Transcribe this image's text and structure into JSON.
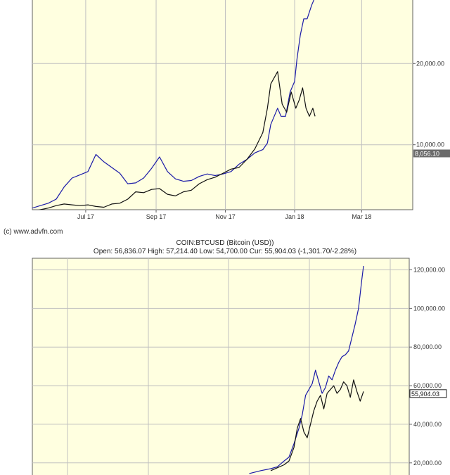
{
  "credit": "(c) www.advfn.com",
  "chart_data": [
    {
      "type": "line",
      "title": "",
      "xlabel": "",
      "ylabel": "",
      "x_ticks": [
        "Jul 17",
        "Sep 17",
        "Nov 17",
        "Jan 18",
        "Mar 18"
      ],
      "y_ticks": [
        "10,000.00",
        "20,000.00"
      ],
      "ylim": [
        2000,
        28000
      ],
      "last_value_label": "8,056.10",
      "grid": true,
      "series": [
        {
          "color": "#1a1aa8",
          "x": [
            "2017-05-15",
            "2017-05-22",
            "2017-05-29",
            "2017-06-05",
            "2017-06-12",
            "2017-06-19",
            "2017-06-26",
            "2017-07-03",
            "2017-07-10",
            "2017-07-17",
            "2017-07-24",
            "2017-07-31",
            "2017-08-07",
            "2017-08-14",
            "2017-08-21",
            "2017-08-28",
            "2017-09-04",
            "2017-09-11",
            "2017-09-18",
            "2017-09-25",
            "2017-10-02",
            "2017-10-09",
            "2017-10-16",
            "2017-10-23",
            "2017-10-30",
            "2017-11-06",
            "2017-11-13",
            "2017-11-20",
            "2017-11-27",
            "2017-12-04",
            "2017-12-08",
            "2017-12-11",
            "2017-12-17",
            "2017-12-20",
            "2017-12-24",
            "2017-12-28",
            "2018-01-01",
            "2018-01-03",
            "2018-01-06",
            "2018-01-09",
            "2018-01-12",
            "2018-01-16",
            "2018-01-20"
          ],
          "y": [
            2200,
            2500,
            2800,
            3300,
            4800,
            5900,
            6300,
            6700,
            8800,
            7900,
            7200,
            6500,
            5200,
            5300,
            5900,
            7100,
            8500,
            6700,
            5800,
            5500,
            5600,
            6100,
            6400,
            6200,
            6400,
            6700,
            7600,
            8200,
            9000,
            9400,
            10200,
            12500,
            14500,
            13500,
            13500,
            16500,
            17800,
            20500,
            23500,
            25500,
            25500,
            27200,
            28500
          ]
        },
        {
          "color": "#111111",
          "x": [
            "2017-05-15",
            "2017-05-22",
            "2017-05-29",
            "2017-06-05",
            "2017-06-12",
            "2017-06-19",
            "2017-06-26",
            "2017-07-03",
            "2017-07-10",
            "2017-07-17",
            "2017-07-24",
            "2017-07-31",
            "2017-08-07",
            "2017-08-14",
            "2017-08-21",
            "2017-08-28",
            "2017-09-04",
            "2017-09-11",
            "2017-09-18",
            "2017-09-25",
            "2017-10-02",
            "2017-10-09",
            "2017-10-16",
            "2017-10-23",
            "2017-10-30",
            "2017-11-06",
            "2017-11-13",
            "2017-11-20",
            "2017-11-27",
            "2017-12-04",
            "2017-12-08",
            "2017-12-11",
            "2017-12-17",
            "2017-12-21",
            "2017-12-25",
            "2017-12-29",
            "2018-01-02",
            "2018-01-05",
            "2018-01-08",
            "2018-01-11",
            "2018-01-14",
            "2018-01-17",
            "2018-01-19"
          ],
          "y": [
            1800,
            2000,
            2200,
            2500,
            2700,
            2600,
            2500,
            2600,
            2400,
            2300,
            2700,
            2800,
            3300,
            4200,
            4100,
            4500,
            4600,
            3900,
            3700,
            4200,
            4400,
            5200,
            5700,
            6000,
            6500,
            7000,
            7200,
            8200,
            9500,
            11500,
            14500,
            17500,
            19000,
            15000,
            14000,
            16500,
            14500,
            15500,
            17000,
            14500,
            13500,
            14500,
            13500
          ]
        }
      ]
    },
    {
      "type": "line",
      "title": "COIN:BTCUSD (Bitcoin (USD))",
      "subtitle": "Open: 56,836.07 High: 57,214.40 Low: 54,700.00 Cur: 55,904.03 (-1,301.70/-2.28%)",
      "xlabel": "",
      "ylabel": "",
      "y_ticks": [
        "20,000.00",
        "40,000.00",
        "60,000.00",
        "80,000.00",
        "100,000.00",
        "120,000.00"
      ],
      "ylim": [
        13000,
        126000
      ],
      "last_value_label": "55,904.03",
      "grid": true,
      "series": [
        {
          "color": "#1a1aa8",
          "x": [
            0.655,
            0.69,
            0.72,
            0.74,
            0.76,
            0.775,
            0.79,
            0.805,
            0.815,
            0.825,
            0.835,
            0.845,
            0.855,
            0.865,
            0.875,
            0.885,
            0.895,
            0.905,
            0.915,
            0.925,
            0.935,
            0.945,
            0.955,
            0.965,
            0.975,
            0.985,
            0.995,
            1.0
          ],
          "y": [
            14500,
            16000,
            17000,
            18000,
            21000,
            23000,
            30000,
            38000,
            45000,
            55000,
            58000,
            61000,
            68000,
            62000,
            56000,
            59000,
            65000,
            63000,
            68000,
            72000,
            75000,
            76000,
            78000,
            85000,
            92000,
            100000,
            115000,
            122000
          ]
        },
        {
          "color": "#111111",
          "x": [
            0.72,
            0.74,
            0.76,
            0.775,
            0.79,
            0.8,
            0.81,
            0.82,
            0.83,
            0.84,
            0.85,
            0.86,
            0.87,
            0.88,
            0.89,
            0.9,
            0.91,
            0.92,
            0.93,
            0.94,
            0.95,
            0.96,
            0.97,
            0.98,
            0.99,
            1.0
          ],
          "y": [
            16000,
            17500,
            19000,
            21000,
            28000,
            38000,
            43000,
            36000,
            33000,
            40000,
            47000,
            52000,
            55000,
            48000,
            56000,
            58000,
            60000,
            56000,
            58000,
            62000,
            60000,
            54000,
            63000,
            57000,
            52000,
            57000
          ]
        }
      ]
    }
  ]
}
